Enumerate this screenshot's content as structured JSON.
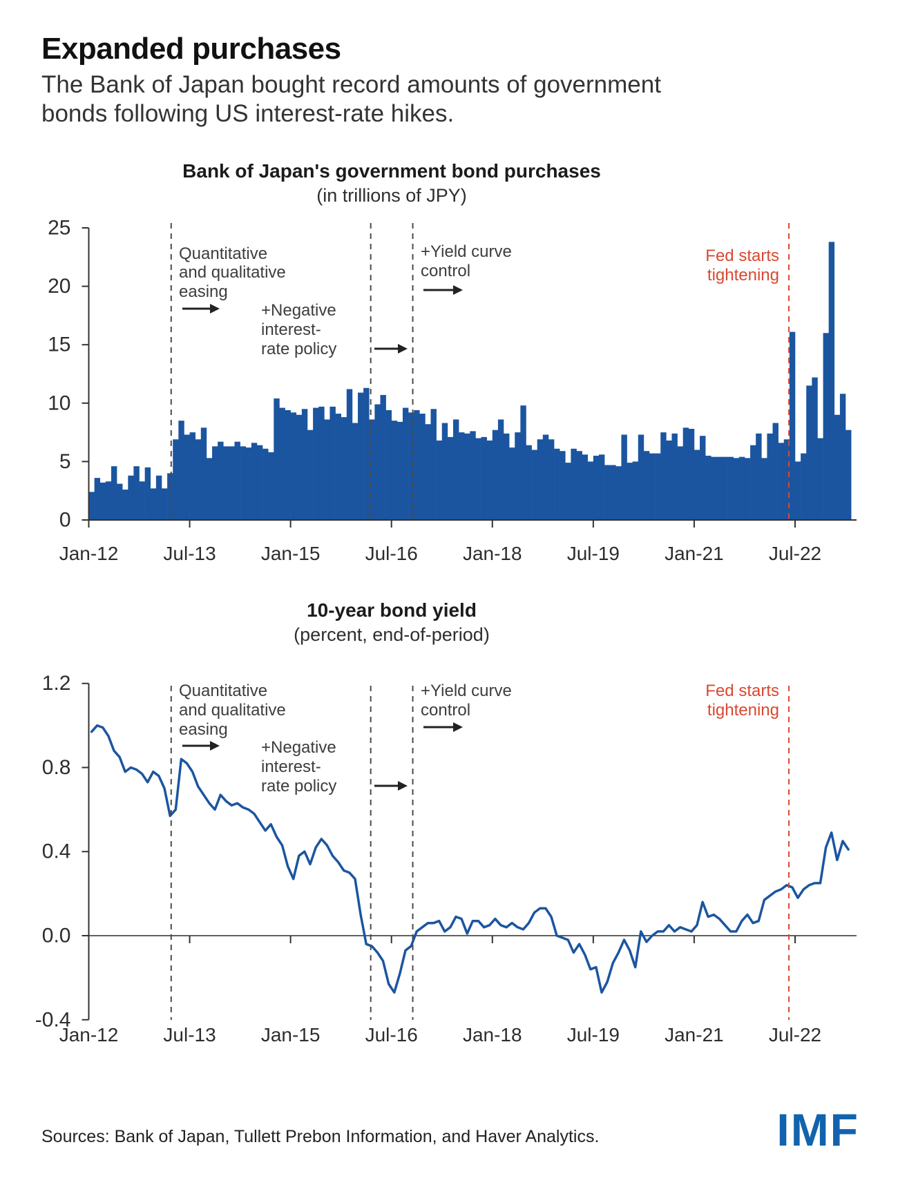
{
  "page": {
    "title": "Expanded purchases",
    "subtitle_line1": "The Bank of Japan bought record amounts of government",
    "subtitle_line2": "bonds following US interest-rate hikes.",
    "footer_sources": "Sources: Bank of Japan, Tullett Prebon Information, and Haver Analytics.",
    "logo": "IMF"
  },
  "colors": {
    "chart_blue": "#1b55a0",
    "accent_red": "#d94831",
    "dash_gray": "#4a4a4a",
    "axis": "#333333",
    "annotation_text": "#3d3d3d",
    "arrow_black": "#222222",
    "logo_blue": "#1263ae"
  },
  "chart_data": [
    {
      "type": "bar",
      "title": "Bank of Japan's government bond purchases",
      "subtitle": "(in trillions of JPY)",
      "frequency": "monthly",
      "x_range": [
        "Jan-12",
        "Apr-23"
      ],
      "xtick_labels": [
        "Jan-12",
        "Jul-13",
        "Jan-15",
        "Jul-16",
        "Jan-18",
        "Jul-19",
        "Jan-21",
        "Jul-22"
      ],
      "xtick_month_index": [
        0,
        18,
        36,
        54,
        72,
        90,
        108,
        126
      ],
      "ytick_labels": [
        "0",
        "5",
        "10",
        "15",
        "20",
        "25"
      ],
      "ytick_values": [
        0,
        5,
        10,
        15,
        20,
        25
      ],
      "ylim": [
        0,
        25
      ],
      "values": [
        2.4,
        3.6,
        3.2,
        3.3,
        4.6,
        3.1,
        2.6,
        3.8,
        4.6,
        3.3,
        4.5,
        2.7,
        3.8,
        2.7,
        4.0,
        6.9,
        8.5,
        7.3,
        7.5,
        6.9,
        7.9,
        5.3,
        6.3,
        6.7,
        6.3,
        6.3,
        6.7,
        6.3,
        6.2,
        6.6,
        6.4,
        6.1,
        5.8,
        10.4,
        9.6,
        9.4,
        9.2,
        9.0,
        9.5,
        7.7,
        9.6,
        9.7,
        8.6,
        9.7,
        9.1,
        8.8,
        11.2,
        8.3,
        10.9,
        11.3,
        8.6,
        9.9,
        10.7,
        9.4,
        8.5,
        8.4,
        9.6,
        9.2,
        9.4,
        9.1,
        8.2,
        9.5,
        6.8,
        8.3,
        7.1,
        8.6,
        7.5,
        7.4,
        7.6,
        7.0,
        7.1,
        6.8,
        7.7,
        8.6,
        7.4,
        6.2,
        7.5,
        9.8,
        6.4,
        6.0,
        6.9,
        7.3,
        6.9,
        6.1,
        5.9,
        4.9,
        6.1,
        5.9,
        5.6,
        5.0,
        5.5,
        5.6,
        4.7,
        4.7,
        4.6,
        7.3,
        4.9,
        5.0,
        7.3,
        5.9,
        5.7,
        5.7,
        7.5,
        6.8,
        7.4,
        6.3,
        7.9,
        7.8,
        6.0,
        7.2,
        5.5,
        5.4,
        5.4,
        5.4,
        5.4,
        5.3,
        5.4,
        5.3,
        6.4,
        7.4,
        5.3,
        7.4,
        8.3,
        6.6,
        6.9,
        16.1,
        5.0,
        5.7,
        11.5,
        12.2,
        7.0,
        16.0,
        23.8,
        9.0,
        10.8,
        7.7
      ],
      "events": [
        {
          "label_lines": [
            "Quantitative",
            "and qualitative",
            "easing"
          ],
          "month_index": 14.7,
          "style": "dashed-black"
        },
        {
          "label_lines": [
            "+Negative",
            "interest-",
            "rate policy"
          ],
          "month_index": 50.3,
          "style": "dashed-black"
        },
        {
          "label_lines": [
            "+Yield curve",
            "control"
          ],
          "month_index": 57.8,
          "style": "dashed-black"
        },
        {
          "label_lines": [
            "Fed starts",
            "tightening"
          ],
          "month_index": 124.9,
          "style": "dashed-red"
        }
      ]
    },
    {
      "type": "line",
      "title": "10-year bond yield",
      "subtitle": "(percent, end-of-period)",
      "frequency": "monthly",
      "x_range": [
        "Jan-12",
        "Apr-23"
      ],
      "xtick_labels": [
        "Jan-12",
        "Jul-13",
        "Jan-15",
        "Jul-16",
        "Jan-18",
        "Jul-19",
        "Jan-21",
        "Jul-22"
      ],
      "xtick_month_index": [
        0,
        18,
        36,
        54,
        72,
        90,
        108,
        126
      ],
      "ytick_labels": [
        "1.2",
        "0.8",
        "0.4",
        "0.0",
        "-0.4"
      ],
      "ytick_values": [
        1.2,
        0.8,
        0.4,
        0.0,
        -0.4
      ],
      "ylim": [
        -0.4,
        1.2
      ],
      "zero_line": true,
      "values": [
        0.97,
        1.0,
        0.99,
        0.95,
        0.88,
        0.85,
        0.78,
        0.8,
        0.79,
        0.77,
        0.73,
        0.78,
        0.76,
        0.7,
        0.57,
        0.6,
        0.84,
        0.82,
        0.78,
        0.71,
        0.67,
        0.63,
        0.6,
        0.67,
        0.64,
        0.62,
        0.63,
        0.61,
        0.6,
        0.58,
        0.54,
        0.5,
        0.53,
        0.47,
        0.43,
        0.33,
        0.27,
        0.38,
        0.4,
        0.34,
        0.42,
        0.46,
        0.43,
        0.38,
        0.35,
        0.31,
        0.3,
        0.27,
        0.1,
        -0.04,
        -0.05,
        -0.08,
        -0.12,
        -0.23,
        -0.27,
        -0.18,
        -0.07,
        -0.05,
        0.02,
        0.04,
        0.06,
        0.06,
        0.07,
        0.02,
        0.04,
        0.09,
        0.08,
        0.01,
        0.07,
        0.07,
        0.04,
        0.05,
        0.08,
        0.05,
        0.04,
        0.06,
        0.04,
        0.03,
        0.06,
        0.11,
        0.13,
        0.13,
        0.09,
        0.0,
        -0.01,
        -0.02,
        -0.08,
        -0.04,
        -0.09,
        -0.16,
        -0.15,
        -0.27,
        -0.22,
        -0.13,
        -0.08,
        -0.02,
        -0.07,
        -0.15,
        0.02,
        -0.03,
        0.0,
        0.02,
        0.02,
        0.05,
        0.02,
        0.04,
        0.03,
        0.02,
        0.05,
        0.16,
        0.09,
        0.1,
        0.08,
        0.05,
        0.02,
        0.02,
        0.07,
        0.1,
        0.06,
        0.07,
        0.17,
        0.19,
        0.21,
        0.22,
        0.24,
        0.23,
        0.18,
        0.22,
        0.24,
        0.25,
        0.25,
        0.42,
        0.49,
        0.36,
        0.45,
        0.41
      ],
      "events": [
        {
          "label_lines": [
            "Quantitative",
            "and qualitative",
            "easing"
          ],
          "month_index": 14.7,
          "style": "dashed-black"
        },
        {
          "label_lines": [
            "+Negative",
            "interest-",
            "rate policy"
          ],
          "month_index": 50.3,
          "style": "dashed-black"
        },
        {
          "label_lines": [
            "+Yield curve",
            "control"
          ],
          "month_index": 57.8,
          "style": "dashed-black"
        },
        {
          "label_lines": [
            "Fed starts",
            "tightening"
          ],
          "month_index": 124.9,
          "style": "dashed-red"
        }
      ]
    }
  ]
}
